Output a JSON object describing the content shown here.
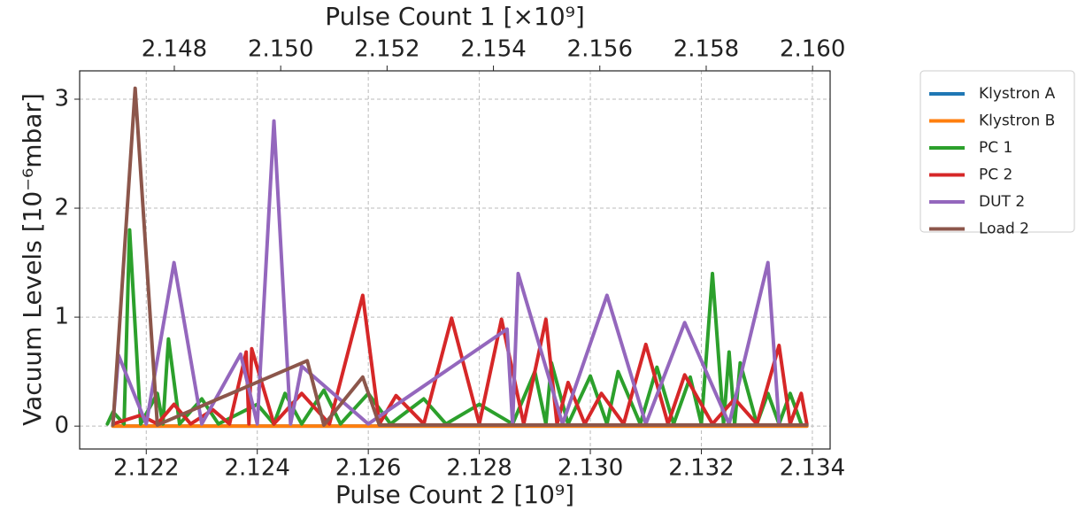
{
  "chart_data": {
    "type": "line",
    "xlabel": "Pulse Count 2 [10⁹]",
    "x2label": "Pulse Count 1 [×10⁹]",
    "ylabel": "Vacuum Levels [10⁻⁶mbar]",
    "xlim": [
      2.1208,
      2.13432
    ],
    "xticks": [
      2.122,
      2.124,
      2.126,
      2.128,
      {
        "value": 2.13,
        "label": "2.130"
      },
      2.132,
      2.134
    ],
    "x2lim": [
      2.14622,
      2.16033
    ],
    "x2ticks": [
      2.148,
      {
        "value": 2.15,
        "label": "2.150"
      },
      2.152,
      2.154,
      2.156,
      2.158,
      {
        "value": 2.16,
        "label": "2.160"
      }
    ],
    "ylim": [
      -0.21,
      3.26
    ],
    "yticks": [
      0,
      1,
      2,
      3
    ],
    "grid": true,
    "legend": "outside-right-top",
    "series": [
      {
        "name": "Klystron A",
        "color": "#1f77b4",
        "x": [
          2.1214,
          2.1339
        ],
        "values": [
          0,
          0
        ]
      },
      {
        "name": "Klystron B",
        "color": "#ff7f0e",
        "x": [
          2.1214,
          2.1339
        ],
        "values": [
          0,
          0
        ]
      },
      {
        "name": "PC 1",
        "color": "#2ca02c",
        "x": [
          2.1213,
          2.1214,
          2.1216,
          2.1217,
          2.1219,
          2.1222,
          2.1223,
          2.1224,
          2.1226,
          2.123,
          2.1233,
          2.124,
          2.1243,
          2.1245,
          2.1248,
          2.1252,
          2.1255,
          2.126,
          2.1264,
          2.127,
          2.1274,
          2.128,
          2.1286,
          2.129,
          2.1292,
          2.1293,
          2.1296,
          2.13,
          2.1303,
          2.1305,
          2.1309,
          2.1312,
          2.1315,
          2.1318,
          2.132,
          2.1322,
          2.1324,
          2.1325,
          2.1326,
          2.1327,
          2.133,
          2.1332,
          2.1334,
          2.1336,
          2.1338
        ],
        "values": [
          0.02,
          0.13,
          0.02,
          1.8,
          0.02,
          0.3,
          0.02,
          0.8,
          0.02,
          0.25,
          0.02,
          0.2,
          0.02,
          0.3,
          0.02,
          0.33,
          0.02,
          0.3,
          0.02,
          0.25,
          0.02,
          0.2,
          0.02,
          0.5,
          0.02,
          0.58,
          0.02,
          0.46,
          0.02,
          0.5,
          0.02,
          0.54,
          0.02,
          0.45,
          0.02,
          1.4,
          0.02,
          0.68,
          0.02,
          0.58,
          0.02,
          0.3,
          0.02,
          0.3,
          0.02
        ]
      },
      {
        "name": "PC 2",
        "color": "#d62728",
        "x": [
          2.1214,
          2.1219,
          2.1222,
          2.1225,
          2.1228,
          2.1232,
          2.1235,
          2.1238,
          2.12385,
          2.1239,
          2.1243,
          2.1248,
          2.1253,
          2.1259,
          2.1262,
          2.1265,
          2.127,
          2.1275,
          2.128,
          2.1284,
          2.1288,
          2.1292,
          2.1294,
          2.1296,
          2.1299,
          2.1302,
          2.1306,
          2.131,
          2.1314,
          2.1317,
          2.1322,
          2.1326,
          2.133,
          2.1334,
          2.1336,
          2.1338,
          2.1339
        ],
        "values": [
          0.02,
          0.1,
          0.02,
          0.2,
          0.02,
          0.15,
          0.02,
          0.68,
          0.02,
          0.71,
          0.02,
          0.3,
          0.02,
          1.2,
          0.02,
          0.28,
          0.02,
          0.99,
          0.02,
          0.98,
          0.02,
          0.98,
          0.02,
          0.4,
          0.02,
          0.3,
          0.02,
          0.75,
          0.02,
          0.47,
          0.02,
          0.25,
          0.02,
          0.74,
          0.02,
          0.3,
          0.02
        ]
      },
      {
        "name": "DUT 2",
        "color": "#9467bd",
        "x": [
          2.1214,
          2.1215,
          2.122,
          2.1225,
          2.123,
          2.1237,
          2.124,
          2.1243,
          2.1246,
          2.1248,
          2.126,
          2.1285,
          2.1286,
          2.1287,
          2.1295,
          2.1303,
          2.131,
          2.1317,
          2.1325,
          2.1332,
          2.1334
        ],
        "values": [
          0.02,
          0.65,
          0.02,
          1.5,
          0.02,
          0.66,
          0.02,
          2.8,
          0.02,
          0.55,
          0.02,
          0.89,
          0.02,
          1.4,
          0.02,
          1.2,
          0.02,
          0.95,
          0.02,
          1.5,
          0.02
        ]
      },
      {
        "name": "Load 2",
        "color": "#8c564b",
        "x": [
          2.1214,
          2.1218,
          2.1222,
          2.1249,
          2.1252,
          2.1259,
          2.1262,
          2.1339
        ],
        "values": [
          0.01,
          3.1,
          0.01,
          0.6,
          0.01,
          0.45,
          0.01,
          0.01
        ]
      }
    ]
  }
}
